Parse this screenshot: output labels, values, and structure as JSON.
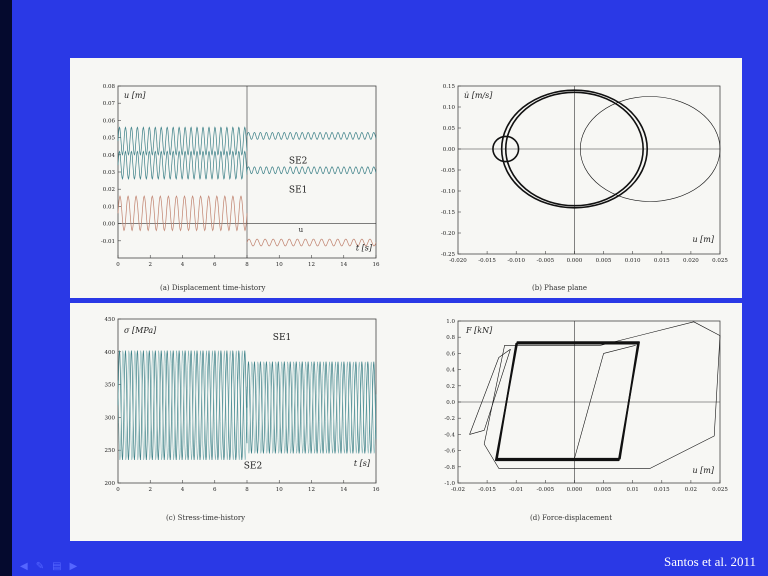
{
  "slide": {
    "background_color": "#2a39e6",
    "credit": "Santos et al. 2011",
    "nav_icons": [
      "prev-slide-icon",
      "pen-icon",
      "menu-icon",
      "next-slide-icon"
    ]
  },
  "chart_data": [
    {
      "id": "a",
      "type": "line",
      "caption": "(a) Displacement time-history",
      "ylabel": "u [m]",
      "xlabel": "t [s]",
      "xlim": [
        0,
        16
      ],
      "ylim": [
        -0.02,
        0.08
      ],
      "xticks": [
        "0",
        "2",
        "4",
        "6",
        "8",
        "10",
        "12",
        "14",
        "16"
      ],
      "yticks": [
        "-0.01",
        "0.00",
        "0.01",
        "0.02",
        "0.03",
        "0.04",
        "0.05",
        "0.06",
        "0.07",
        "0.08"
      ],
      "annotations": [
        "SE2",
        "SE1",
        "u"
      ],
      "series": [
        {
          "label": "SE2",
          "color": "#3a7f86",
          "segments": [
            {
              "t": [
                0,
                8
              ],
              "mean": 0.048,
              "amp": 0.008,
              "period": 0.37
            },
            {
              "t": [
                8,
                16
              ],
              "mean": 0.051,
              "amp": 0.002,
              "period": 0.37
            }
          ]
        },
        {
          "label": "SE1",
          "color": "#3a7f86",
          "segments": [
            {
              "t": [
                0,
                8
              ],
              "mean": 0.034,
              "amp": 0.008,
              "period": 0.37
            },
            {
              "t": [
                8,
                16
              ],
              "mean": 0.031,
              "amp": 0.002,
              "period": 0.37
            }
          ]
        },
        {
          "label": "u",
          "color": "#c0826e",
          "segments": [
            {
              "t": [
                0,
                8
              ],
              "mean": 0.006,
              "amp": 0.01,
              "period": 0.5
            },
            {
              "t": [
                8,
                16
              ],
              "mean": -0.011,
              "amp": 0.002,
              "period": 0.5
            }
          ]
        }
      ]
    },
    {
      "id": "b",
      "type": "line",
      "caption": "(b) Phase plane",
      "ylabel": "u̇ [m/s]",
      "xlabel": "u [m]",
      "xlim": [
        -0.02,
        0.025
      ],
      "ylim": [
        -0.25,
        0.15
      ],
      "xticks": [
        "-0.020",
        "-0.015",
        "-0.010",
        "-0.005",
        "0.000",
        "0.005",
        "0.010",
        "0.015",
        "0.020",
        "0.025"
      ],
      "yticks": [
        "-0.25",
        "-0.20",
        "-0.15",
        "-0.10",
        "-0.05",
        "0.00",
        "0.05",
        "0.10",
        "0.15"
      ],
      "curves": [
        {
          "kind": "ellipse",
          "cx": 0.0,
          "cy": 0.0,
          "rx": 0.0125,
          "ry": 0.14,
          "weight": "bold"
        },
        {
          "kind": "ellipse",
          "cx": 0.0,
          "cy": 0.0,
          "rx": 0.0118,
          "ry": 0.135,
          "weight": "bold"
        },
        {
          "kind": "ellipse",
          "cx": 0.013,
          "cy": 0.0,
          "rx": 0.012,
          "ry": 0.125,
          "weight": "thin"
        },
        {
          "kind": "ellipse",
          "cx": -0.0118,
          "cy": 0.0,
          "rx": 0.0022,
          "ry": 0.03,
          "weight": "bold"
        }
      ]
    },
    {
      "id": "c",
      "type": "line",
      "caption": "(c) Stress-time-history",
      "ylabel": "σ [MPa]",
      "xlabel": "t [s]",
      "xlim": [
        0,
        16
      ],
      "ylim": [
        200,
        450
      ],
      "xticks": [
        "0",
        "2",
        "4",
        "6",
        "8",
        "10",
        "12",
        "14",
        "16"
      ],
      "yticks": [
        "200",
        "250",
        "300",
        "350",
        "400",
        "450"
      ],
      "annotations": [
        "SE1",
        "SE2"
      ],
      "series": [
        {
          "label": "SE1/SE2",
          "color": "#3a7f86",
          "segments": [
            {
              "t": [
                0,
                8
              ],
              "low": 235,
              "high": 402,
              "period": 0.37
            },
            {
              "t": [
                8,
                16
              ],
              "low": 245,
              "high": 385,
              "period": 0.37
            }
          ]
        }
      ]
    },
    {
      "id": "d",
      "type": "line",
      "caption": "(d) Force-displacement",
      "ylabel": "F [kN]",
      "xlabel": "u [m]",
      "xlim": [
        -0.02,
        0.025
      ],
      "ylim": [
        -1.0,
        1.0
      ],
      "xticks": [
        "-0.02",
        "-0.015",
        "-0.01",
        "-0.005",
        "0.000",
        "0.005",
        "0.01",
        "0.015",
        "0.02",
        "0.025"
      ],
      "yticks": [
        "-1.0",
        "-0.8",
        "-0.6",
        "-0.4",
        "-0.2",
        "0.0",
        "0.2",
        "0.4",
        "0.6",
        "0.8",
        "1.0"
      ],
      "loops": [
        {
          "points": [
            [
              -0.0133,
              -0.7
            ],
            [
              -0.01,
              0.72
            ],
            [
              0.0109,
              0.72
            ],
            [
              0.0078,
              -0.7
            ]
          ],
          "weight": "bold"
        },
        {
          "points": [
            [
              -0.0135,
              -0.72
            ],
            [
              -0.0098,
              0.74
            ],
            [
              0.0111,
              0.74
            ],
            [
              0.0076,
              -0.72
            ]
          ],
          "weight": "bold"
        },
        {
          "points": [
            [
              -0.0155,
              -0.52
            ],
            [
              -0.012,
              0.7
            ],
            [
              0.0045,
              0.7
            ],
            [
              0.0205,
              0.99
            ],
            [
              0.025,
              0.82
            ],
            [
              0.024,
              -0.42
            ],
            [
              0.013,
              -0.82
            ],
            [
              -0.013,
              -0.82
            ]
          ],
          "weight": "thin"
        },
        {
          "points": [
            [
              -0.018,
              -0.4
            ],
            [
              -0.013,
              0.55
            ],
            [
              -0.011,
              0.65
            ],
            [
              -0.0155,
              -0.35
            ]
          ],
          "weight": "thin"
        },
        {
          "points": [
            [
              0.0,
              -0.7
            ],
            [
              0.005,
              0.6
            ],
            [
              0.0105,
              0.7
            ]
          ],
          "weight": "thin",
          "open": true
        }
      ]
    }
  ]
}
